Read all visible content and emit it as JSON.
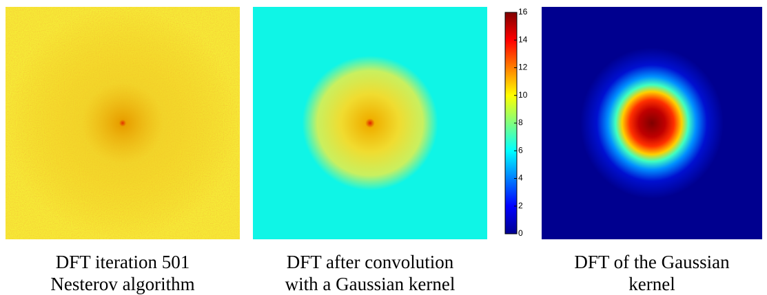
{
  "panels": [
    {
      "caption": [
        "DFT iteration 501",
        "Nesterov algorithm"
      ]
    },
    {
      "caption": [
        "DFT after convolution",
        "with a Gaussian kernel"
      ]
    },
    {
      "caption": [
        "DFT of the Gaussian",
        "kernel"
      ]
    }
  ],
  "colorbar": {
    "lim": [
      0,
      16
    ],
    "ticks": [
      0,
      2,
      4,
      6,
      8,
      10,
      12,
      14,
      16
    ]
  }
}
